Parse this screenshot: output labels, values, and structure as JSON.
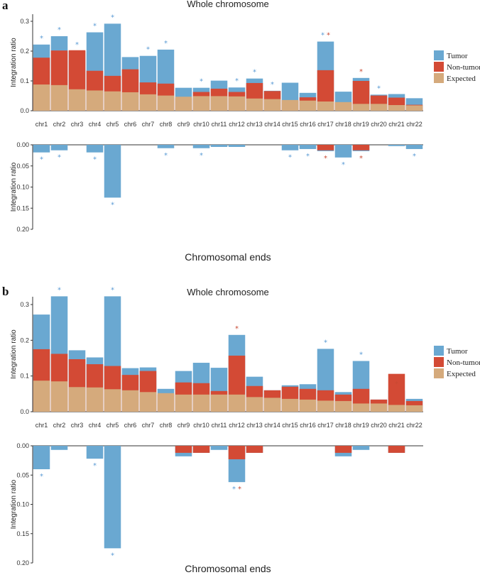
{
  "chart_data": [
    {
      "panel": "a",
      "type": "bar",
      "title": "Whole chromosome",
      "ylabel": "Integration ratio",
      "ylim": [
        0,
        0.33
      ],
      "yticks": [
        "0.0",
        "0.1",
        "0.2",
        "0.3"
      ],
      "ytick_values": [
        0,
        0.1,
        0.2,
        0.3
      ],
      "categories": [
        "chr1",
        "chr2",
        "chr3",
        "chr4",
        "chr5",
        "chr6",
        "chr7",
        "chr8",
        "chr9",
        "chr10",
        "chr11",
        "chr12",
        "chr13",
        "chr14",
        "chr15",
        "chr16",
        "chr17",
        "chr18",
        "chr19",
        "chr20",
        "chr21",
        "chr22"
      ],
      "series": [
        {
          "name": "Tumor",
          "values": [
            0.222,
            0.25,
            0.2,
            0.263,
            0.292,
            0.18,
            0.184,
            0.205,
            0.077,
            0.077,
            0.101,
            0.078,
            0.108,
            0.067,
            0.094,
            0.06,
            0.232,
            0.064,
            0.11,
            0.054,
            0.056,
            0.042
          ]
        },
        {
          "name": "Non-tumor",
          "values": [
            0.178,
            0.202,
            0.203,
            0.134,
            0.117,
            0.139,
            0.095,
            0.091,
            0.042,
            0.063,
            0.074,
            0.063,
            0.093,
            0.066,
            0.035,
            0.045,
            0.136,
            0.028,
            0.1,
            0.051,
            0.044,
            0.02
          ]
        },
        {
          "name": "Expected",
          "values": [
            0.088,
            0.086,
            0.072,
            0.068,
            0.065,
            0.062,
            0.055,
            0.051,
            0.047,
            0.049,
            0.049,
            0.048,
            0.041,
            0.039,
            0.036,
            0.034,
            0.031,
            0.029,
            0.023,
            0.023,
            0.019,
            0.018
          ]
        }
      ],
      "legend": [
        "Tumor",
        "Non-tumor",
        "Expected"
      ],
      "colors": {
        "tumor": "#6aa8d1",
        "nontumor": "#d34a35",
        "expected": "#d5aa7c",
        "star_blue": "#5b9bd5",
        "star_red": "#c94a33"
      },
      "stars": [
        {
          "cat": "chr1",
          "marks": [
            "blue"
          ]
        },
        {
          "cat": "chr2",
          "marks": [
            "blue"
          ]
        },
        {
          "cat": "chr3",
          "marks": [
            "blue"
          ]
        },
        {
          "cat": "chr4",
          "marks": [
            "blue"
          ]
        },
        {
          "cat": "chr5",
          "marks": [
            "blue"
          ]
        },
        {
          "cat": "chr7",
          "marks": [
            "blue"
          ]
        },
        {
          "cat": "chr8",
          "marks": [
            "blue"
          ]
        },
        {
          "cat": "chr10",
          "marks": [
            "blue"
          ]
        },
        {
          "cat": "chr12",
          "marks": [
            "blue"
          ]
        },
        {
          "cat": "chr13",
          "marks": [
            "blue"
          ]
        },
        {
          "cat": "chr14",
          "marks": [
            "blue"
          ]
        },
        {
          "cat": "chr17",
          "marks": [
            "blue",
            "red"
          ]
        },
        {
          "cat": "chr19",
          "marks": [
            "red"
          ]
        },
        {
          "cat": "chr20",
          "marks": [
            "blue"
          ]
        }
      ],
      "ends": {
        "title": "Chromosomal ends",
        "ylabel": "Integration ratio",
        "ylim": [
          0,
          0.2
        ],
        "yticks": [
          "0.00",
          "0.05",
          "0.10",
          "0.15",
          "0.20"
        ],
        "ytick_values": [
          0,
          0.05,
          0.1,
          0.15,
          0.2
        ],
        "tumor": [
          0.018,
          0.013,
          0,
          0.018,
          0.125,
          0,
          0,
          0.008,
          0,
          0.008,
          0.005,
          0.005,
          0,
          0,
          0.013,
          0.01,
          0.015,
          0.03,
          0.015,
          0,
          0.003,
          0.01
        ],
        "nontumor": [
          0,
          0,
          0,
          0,
          0,
          0,
          0,
          0,
          0,
          0,
          0,
          0,
          0,
          0,
          0,
          0,
          0.013,
          0,
          0.013,
          0,
          0,
          0
        ],
        "stars": [
          {
            "cat": "chr1",
            "marks": [
              "blue"
            ]
          },
          {
            "cat": "chr2",
            "marks": [
              "blue"
            ]
          },
          {
            "cat": "chr4",
            "marks": [
              "blue"
            ]
          },
          {
            "cat": "chr5",
            "marks": [
              "blue"
            ]
          },
          {
            "cat": "chr8",
            "marks": [
              "blue"
            ]
          },
          {
            "cat": "chr10",
            "marks": [
              "blue"
            ]
          },
          {
            "cat": "chr15",
            "marks": [
              "blue"
            ]
          },
          {
            "cat": "chr16",
            "marks": [
              "blue"
            ]
          },
          {
            "cat": "chr17",
            "marks": [
              "red"
            ]
          },
          {
            "cat": "chr18",
            "marks": [
              "blue"
            ]
          },
          {
            "cat": "chr19",
            "marks": [
              "red"
            ]
          },
          {
            "cat": "chr22",
            "marks": [
              "blue"
            ]
          }
        ]
      }
    },
    {
      "panel": "b",
      "type": "bar",
      "title": "Whole chromosome",
      "ylabel": "Integration ratio",
      "ylim": [
        0,
        0.33
      ],
      "yticks": [
        "0.0",
        "0.1",
        "0.2",
        "0.3"
      ],
      "ytick_values": [
        0,
        0.1,
        0.2,
        0.3
      ],
      "categories": [
        "chr1",
        "chr2",
        "chr3",
        "chr4",
        "chr5",
        "chr6",
        "chr7",
        "chr8",
        "chr9",
        "chr10",
        "chr11",
        "chr12",
        "chr13",
        "chr14",
        "chr15",
        "chr16",
        "chr17",
        "chr18",
        "chr19",
        "chr20",
        "chr21",
        "chr22"
      ],
      "series": [
        {
          "name": "Tumor",
          "values": [
            0.272,
            0.323,
            0.172,
            0.152,
            0.323,
            0.122,
            0.124,
            0.064,
            0.114,
            0.137,
            0.123,
            0.215,
            0.098,
            0.06,
            0.074,
            0.077,
            0.176,
            0.055,
            0.142,
            0.034,
            0.06,
            0.036
          ]
        },
        {
          "name": "Non-tumor",
          "values": [
            0.175,
            0.162,
            0.147,
            0.133,
            0.128,
            0.103,
            0.114,
            0.048,
            0.082,
            0.08,
            0.058,
            0.157,
            0.072,
            0.06,
            0.07,
            0.064,
            0.06,
            0.048,
            0.064,
            0.034,
            0.106,
            0.03
          ]
        },
        {
          "name": "Expected",
          "values": [
            0.087,
            0.085,
            0.069,
            0.068,
            0.063,
            0.06,
            0.055,
            0.052,
            0.048,
            0.048,
            0.048,
            0.048,
            0.041,
            0.039,
            0.036,
            0.034,
            0.031,
            0.03,
            0.023,
            0.023,
            0.019,
            0.018
          ]
        }
      ],
      "legend": [
        "Tumor",
        "Non-tumor",
        "Expected"
      ],
      "colors": {
        "tumor": "#6aa8d1",
        "nontumor": "#d34a35",
        "expected": "#d5aa7c",
        "star_blue": "#5b9bd5",
        "star_red": "#c94a33"
      },
      "stars": [
        {
          "cat": "chr2",
          "marks": [
            "blue"
          ]
        },
        {
          "cat": "chr5",
          "marks": [
            "blue"
          ]
        },
        {
          "cat": "chr12",
          "marks": [
            "red"
          ]
        },
        {
          "cat": "chr17",
          "marks": [
            "blue"
          ]
        },
        {
          "cat": "chr19",
          "marks": [
            "blue"
          ]
        },
        {
          "cat": "chr21",
          "marks": [
            "red"
          ]
        }
      ],
      "ends": {
        "title": "Chromosomal ends",
        "ylabel": "Integration ratio",
        "ylim": [
          0,
          0.2
        ],
        "yticks": [
          "0.00",
          "0.05",
          "0.10",
          "0.15",
          "0.20"
        ],
        "ytick_values": [
          0,
          0.05,
          0.1,
          0.15,
          0.2
        ],
        "tumor": [
          0.04,
          0.007,
          0,
          0.022,
          0.175,
          0,
          0,
          0,
          0.018,
          0.012,
          0.007,
          0.062,
          0.012,
          0,
          0,
          0,
          0,
          0.018,
          0.007,
          0,
          0.012,
          0
        ],
        "nontumor": [
          0,
          0,
          0,
          0,
          0,
          0,
          0,
          0,
          0.012,
          0.012,
          0,
          0.023,
          0.012,
          0,
          0,
          0,
          0,
          0.012,
          0,
          0,
          0.012,
          0
        ],
        "stars": [
          {
            "cat": "chr1",
            "marks": [
              "blue"
            ]
          },
          {
            "cat": "chr4",
            "marks": [
              "blue"
            ]
          },
          {
            "cat": "chr5",
            "marks": [
              "blue"
            ]
          },
          {
            "cat": "chr12",
            "marks": [
              "blue",
              "red"
            ]
          }
        ]
      }
    }
  ]
}
